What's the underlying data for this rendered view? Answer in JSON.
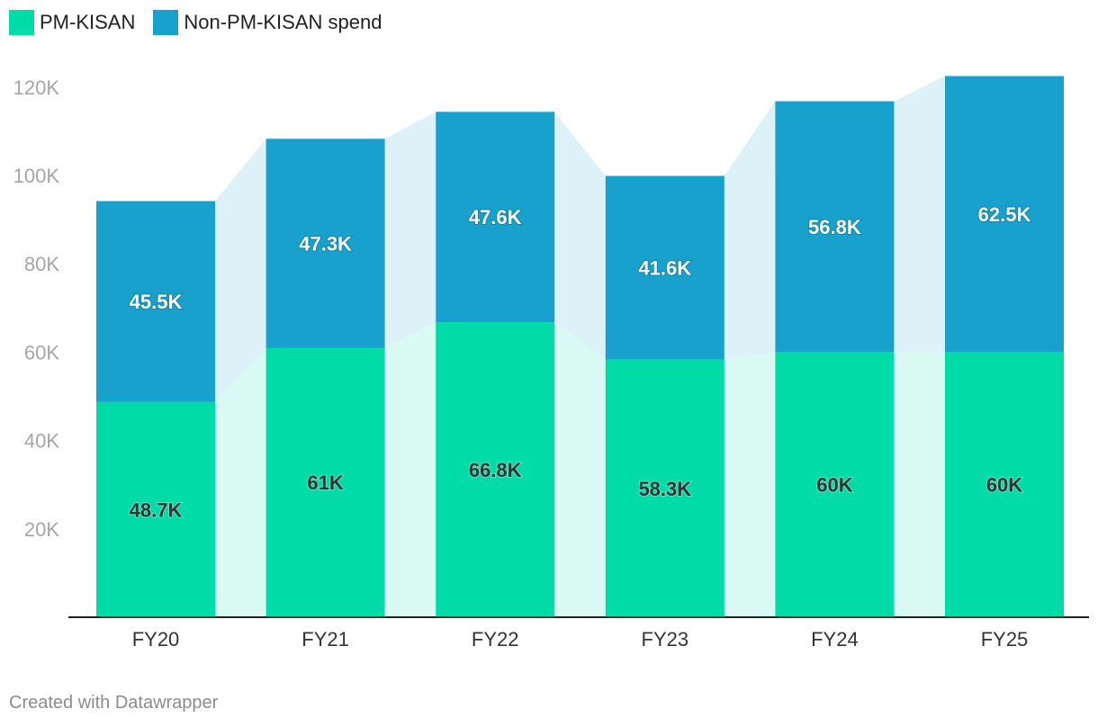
{
  "legend": [
    {
      "label": "PM-KISAN",
      "color": "#00dba7"
    },
    {
      "label": "Non-PM-KISAN spend",
      "color": "#18a1cd"
    }
  ],
  "chart_data": {
    "type": "bar",
    "stacked": true,
    "categories": [
      "FY20",
      "FY21",
      "FY22",
      "FY23",
      "FY24",
      "FY25"
    ],
    "series": [
      {
        "name": "PM-KISAN",
        "values": [
          48.7,
          61,
          66.8,
          58.3,
          60,
          60
        ],
        "labels": [
          "48.7K",
          "61K",
          "66.8K",
          "58.3K",
          "60K",
          "60K"
        ],
        "color": "#00dba7"
      },
      {
        "name": "Non-PM-KISAN spend",
        "values": [
          45.5,
          47.3,
          47.6,
          41.6,
          56.8,
          62.5
        ],
        "labels": [
          "45.5K",
          "47.3K",
          "47.6K",
          "41.6K",
          "56.8K",
          "62.5K"
        ],
        "color": "#18a1cd"
      }
    ],
    "yticks": [
      {
        "value": 20,
        "label": "20K"
      },
      {
        "value": 40,
        "label": "40K"
      },
      {
        "value": 60,
        "label": "60K"
      },
      {
        "value": 80,
        "label": "80K"
      },
      {
        "value": 100,
        "label": "100K"
      },
      {
        "value": 120,
        "label": "120K"
      }
    ],
    "ylim": [
      0,
      122
    ],
    "xlabel": "",
    "ylabel": "",
    "grid": false,
    "legend_position": "top-left"
  },
  "footer": {
    "text": "Created with Datawrapper"
  }
}
